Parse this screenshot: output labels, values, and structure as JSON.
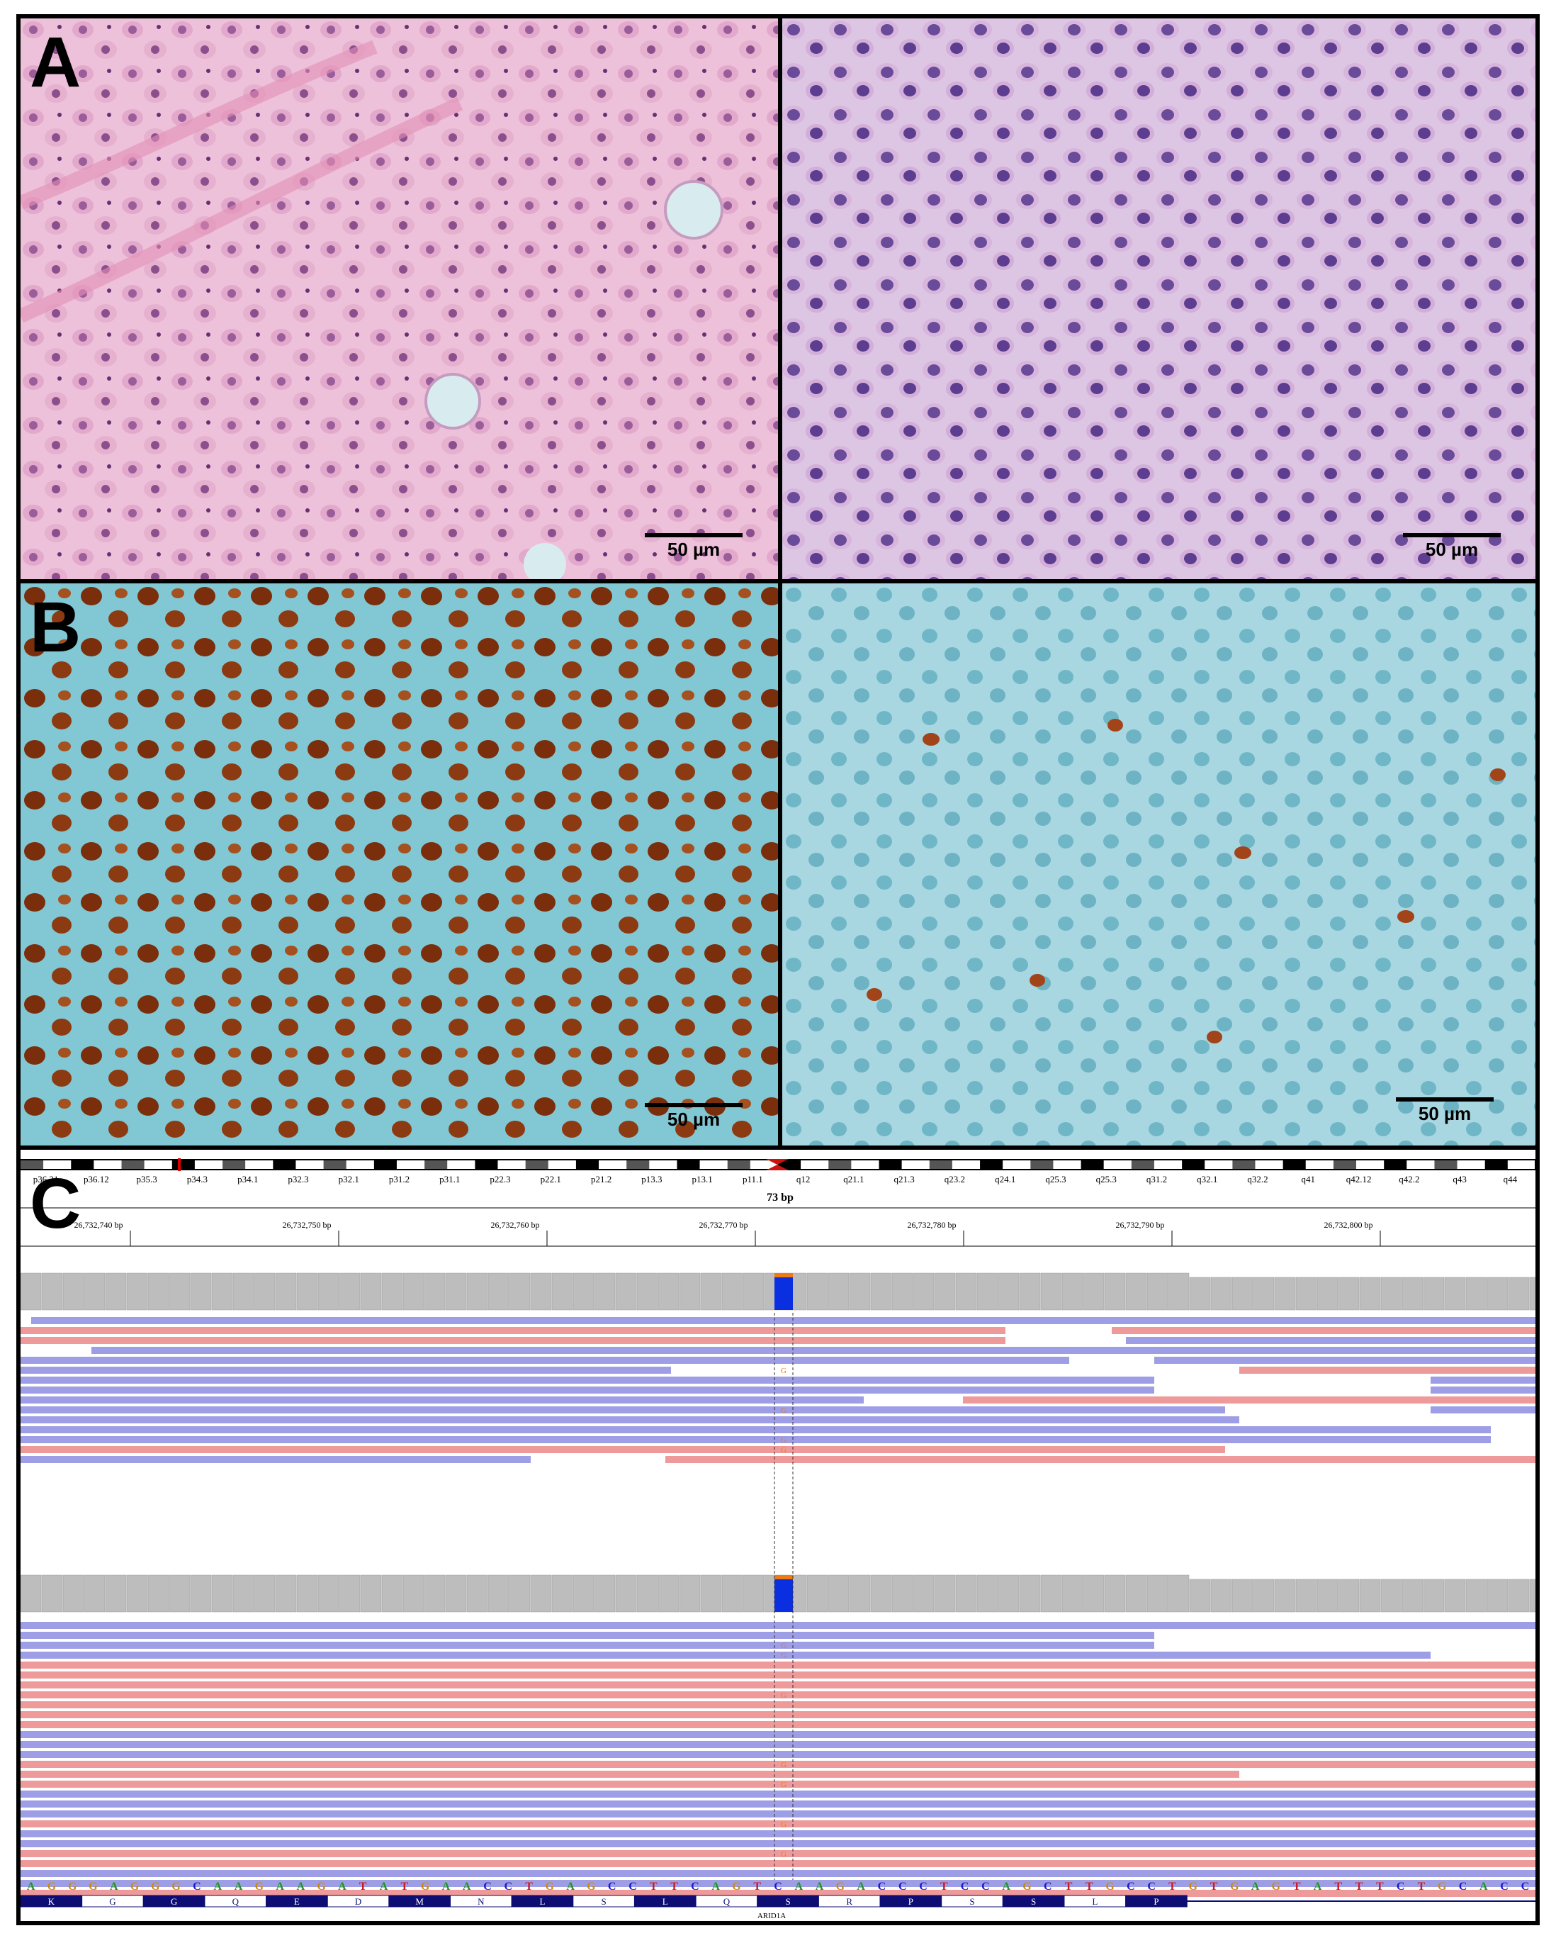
{
  "figure": {
    "panels": {
      "A": {
        "letter": "A",
        "scale_left": "50 µm",
        "scale_right": "50 µm"
      },
      "B": {
        "letter": "B",
        "scale_left": "50 µm",
        "scale_right": "50 µm"
      },
      "C": {
        "letter": "C"
      }
    }
  },
  "igv": {
    "cytobands": [
      "p36.21",
      "p36.12",
      "p35.3",
      "p34.3",
      "p34.1",
      "p32.3",
      "p32.1",
      "p31.2",
      "p31.1",
      "p22.3",
      "p22.1",
      "p21.2",
      "p13.3",
      "p13.1",
      "p11.1",
      "q12",
      "q21.1",
      "q21.3",
      "q23.2",
      "q24.1",
      "q25.3",
      "q25.3",
      "q31.2",
      "q32.1",
      "q32.2",
      "q41",
      "q42.12",
      "q42.2",
      "q43",
      "q44"
    ],
    "span_label": "73 bp",
    "ruler": [
      "26,732,740 bp",
      "26,732,750 bp",
      "26,732,760 bp",
      "26,732,770 bp",
      "26,732,780 bp",
      "26,732,790 bp",
      "26,732,800 bp"
    ],
    "sequence": "AGGGAGGGCAAGAAGATATGAACCTGAGCCTTCAGTCAAGACCCTCCAGCTTGCCTGTGAGTATTTCTGCACC",
    "amino_acids": [
      "K",
      "G",
      "G",
      "Q",
      "E",
      "D",
      "M",
      "N",
      "L",
      "S",
      "L",
      "Q",
      "S",
      "R",
      "P",
      "S",
      "S",
      "L",
      "P"
    ],
    "gene": "ARID1A",
    "mismatch_base": "G",
    "colors": {
      "forward": "#9e9ee6",
      "reverse": "#ee9a9a",
      "coverage": "#bdbdbd",
      "allele_ref": "#0a2fe0",
      "allele_alt": "#ee7a10",
      "exon": "#0d0d73"
    }
  }
}
